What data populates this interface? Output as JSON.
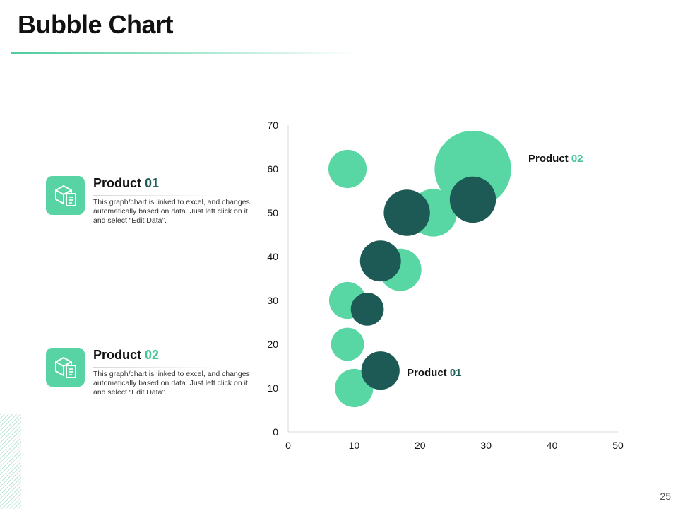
{
  "slide": {
    "title": "Bubble Chart",
    "page_number": "25"
  },
  "cards": [
    {
      "title_main": "Product",
      "title_num": "01",
      "text": "This graph/chart is linked to excel, and changes automatically based on data. Just left click on it and select “Edit Data”."
    },
    {
      "title_main": "Product",
      "title_num": "02",
      "text": "This graph/chart is linked to excel, and changes automatically based on data. Just left click on it and select “Edit Data”."
    }
  ],
  "colors": {
    "product01": "#1d5a56",
    "product02": "#58d6a4",
    "label_num01": "#1f5d57",
    "label_num02": "#43c592"
  },
  "chart_data": {
    "type": "scatter",
    "title": "",
    "xlabel": "",
    "ylabel": "",
    "xlim": [
      0,
      50
    ],
    "ylim": [
      0,
      70
    ],
    "x_ticks": [
      0,
      10,
      20,
      30,
      40,
      50
    ],
    "y_ticks": [
      0,
      10,
      20,
      30,
      40,
      50,
      60,
      70
    ],
    "bubble_size_units": "radius in x-axis data units",
    "series": [
      {
        "name": "Product 01",
        "label_main": "Product",
        "label_num": "01",
        "color_key": "product01",
        "points": [
          {
            "x": 18,
            "y": 50,
            "size": 3.5
          },
          {
            "x": 28,
            "y": 53,
            "size": 3.5
          },
          {
            "x": 14,
            "y": 39,
            "size": 3.1
          },
          {
            "x": 12,
            "y": 28,
            "size": 2.5
          },
          {
            "x": 14,
            "y": 14,
            "size": 2.9
          }
        ]
      },
      {
        "name": "Product 02",
        "label_main": "Product",
        "label_num": "02",
        "color_key": "product02",
        "points": [
          {
            "x": 9,
            "y": 60,
            "size": 2.9
          },
          {
            "x": 28,
            "y": 60,
            "size": 5.8
          },
          {
            "x": 22,
            "y": 50,
            "size": 3.6
          },
          {
            "x": 17,
            "y": 37,
            "size": 3.2
          },
          {
            "x": 9,
            "y": 30,
            "size": 2.8
          },
          {
            "x": 9,
            "y": 20,
            "size": 2.5
          },
          {
            "x": 10,
            "y": 10,
            "size": 2.9
          }
        ]
      }
    ]
  }
}
